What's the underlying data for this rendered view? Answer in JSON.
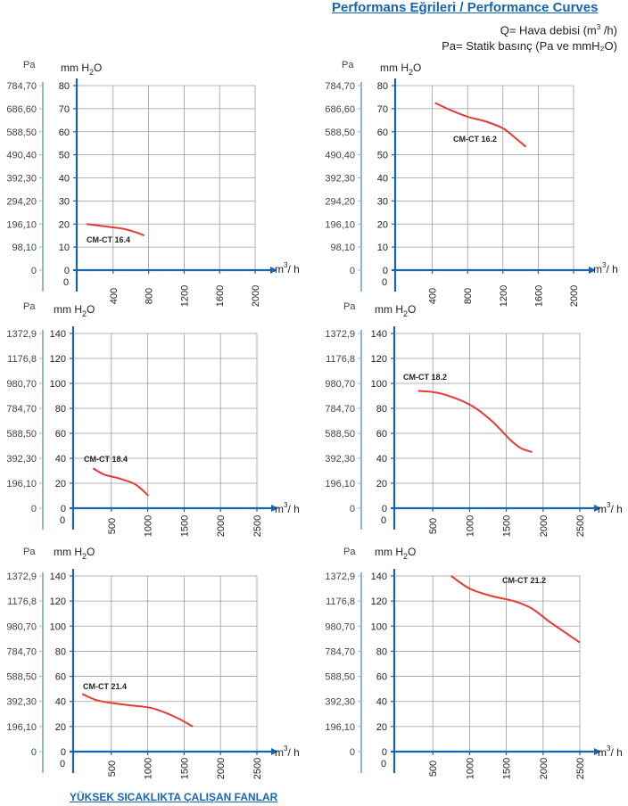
{
  "header": {
    "title": "Performans Eğrileri / Performance Curves",
    "legend_q_prefix": "Q= Hava debisi (m",
    "legend_q_sup": "3",
    "legend_q_suffix": " /h)",
    "legend_pa": "Pa= Statik basınç  (Pa ve mmH₂O)"
  },
  "footer": {
    "text": "YÜKSEK SICAKLIKTA ÇALIŞAN FANLAR"
  },
  "axis_text": {
    "pa": "Pa",
    "mm": "mm H",
    "mm_sub": "2",
    "mm_o": "O",
    "flow_unit": "m",
    "flow_sup": "3",
    "flow_suffix": "/ h"
  },
  "colors": {
    "curve": "#e53935",
    "axis": "#1565b0",
    "grid": "#9e9e9e",
    "title": "#1565b0"
  },
  "chart_data": [
    {
      "type": "line",
      "series": [
        {
          "name": "CM-CT 16.4",
          "x": [
            100,
            300,
            500,
            650,
            750
          ],
          "y": [
            20,
            19,
            18,
            16.5,
            15
          ]
        }
      ],
      "xticks": [
        "0",
        "400",
        "800",
        "1200",
        "1600",
        "2000"
      ],
      "xlim": [
        0,
        2000
      ],
      "yticks": [
        "0",
        "10",
        "20",
        "30",
        "40",
        "50",
        "60",
        "70",
        "80"
      ],
      "ylim": [
        0,
        80
      ],
      "pa_ticks": [
        "0",
        "98,10",
        "196,10",
        "294,20",
        "392,30",
        "490,40",
        "588,50",
        "686,60",
        "784,70"
      ],
      "grid": true
    },
    {
      "type": "line",
      "series": [
        {
          "name": "CM-CT 16.2",
          "x": [
            430,
            600,
            800,
            1000,
            1200,
            1350,
            1460
          ],
          "y": [
            72.5,
            69.5,
            66.5,
            64.5,
            61.5,
            57,
            53.5
          ]
        }
      ],
      "xticks": [
        "0",
        "400",
        "800",
        "1200",
        "1600",
        "2000"
      ],
      "xlim": [
        0,
        2000
      ],
      "yticks": [
        "0",
        "10",
        "20",
        "30",
        "40",
        "50",
        "60",
        "70",
        "80"
      ],
      "ylim": [
        0,
        80
      ],
      "pa_ticks": [
        "0",
        "98,10",
        "196,10",
        "294,20",
        "392,30",
        "490,40",
        "588,50",
        "686,60",
        "784,70"
      ],
      "grid": true
    },
    {
      "type": "line",
      "series": [
        {
          "name": "CM-CT 18.4",
          "x": [
            250,
            400,
            600,
            800,
            900,
            1010
          ],
          "y": [
            32,
            27,
            24,
            20,
            16,
            10
          ]
        }
      ],
      "xticks": [
        "0",
        "500",
        "1000",
        "1500",
        "2000",
        "2500"
      ],
      "xlim": [
        0,
        2500
      ],
      "yticks": [
        "0",
        "20",
        "40",
        "60",
        "80",
        "100",
        "120",
        "140"
      ],
      "ylim": [
        0,
        140
      ],
      "pa_ticks": [
        "0",
        "196,10",
        "392,30",
        "588,50",
        "784,70",
        "980,70",
        "1176,8",
        "1372,9"
      ],
      "grid": true
    },
    {
      "type": "line",
      "series": [
        {
          "name": "CM-CT 18.2",
          "x": [
            300,
            600,
            1000,
            1300,
            1550,
            1700,
            1850
          ],
          "y": [
            94,
            92,
            83,
            70,
            55,
            48,
            45
          ]
        }
      ],
      "xticks": [
        "0",
        "500",
        "1000",
        "1500",
        "2000",
        "2500"
      ],
      "xlim": [
        0,
        2500
      ],
      "yticks": [
        "0",
        "20",
        "40",
        "60",
        "80",
        "100",
        "120",
        "140"
      ],
      "ylim": [
        0,
        140
      ],
      "pa_ticks": [
        "0",
        "196,10",
        "392,30",
        "588,50",
        "784,70",
        "980,70",
        "1176,8",
        "1372,9"
      ],
      "grid": true
    },
    {
      "type": "line",
      "series": [
        {
          "name": "CM-CT 21.4",
          "x": [
            100,
            300,
            600,
            900,
            1100,
            1400,
            1620
          ],
          "y": [
            46,
            41,
            38,
            36,
            34,
            27,
            20
          ]
        }
      ],
      "xticks": [
        "0",
        "500",
        "1000",
        "1500",
        "2000",
        "2500"
      ],
      "xlim": [
        0,
        2500
      ],
      "yticks": [
        "0",
        "20",
        "40",
        "60",
        "80",
        "100",
        "120",
        "140"
      ],
      "ylim": [
        0,
        140
      ],
      "pa_ticks": [
        "0",
        "196,10",
        "392,30",
        "588,50",
        "784,70",
        "980,70",
        "1176,8",
        "1372,9"
      ],
      "grid": true
    },
    {
      "type": "line",
      "series": [
        {
          "name": "CM-CT 21.2",
          "x": [
            750,
            1000,
            1300,
            1600,
            1850,
            2100,
            2500
          ],
          "y": [
            140,
            130,
            124,
            120,
            114,
            103,
            87
          ]
        }
      ],
      "xticks": [
        "0",
        "500",
        "1000",
        "1500",
        "2000",
        "2500"
      ],
      "xlim": [
        0,
        2500
      ],
      "yticks": [
        "0",
        "20",
        "40",
        "60",
        "80",
        "100",
        "120",
        "140"
      ],
      "ylim": [
        0,
        140
      ],
      "pa_ticks": [
        "0",
        "196,10",
        "392,30",
        "588,50",
        "784,70",
        "980,70",
        "1176,8",
        "1372,9"
      ],
      "grid": true
    }
  ]
}
